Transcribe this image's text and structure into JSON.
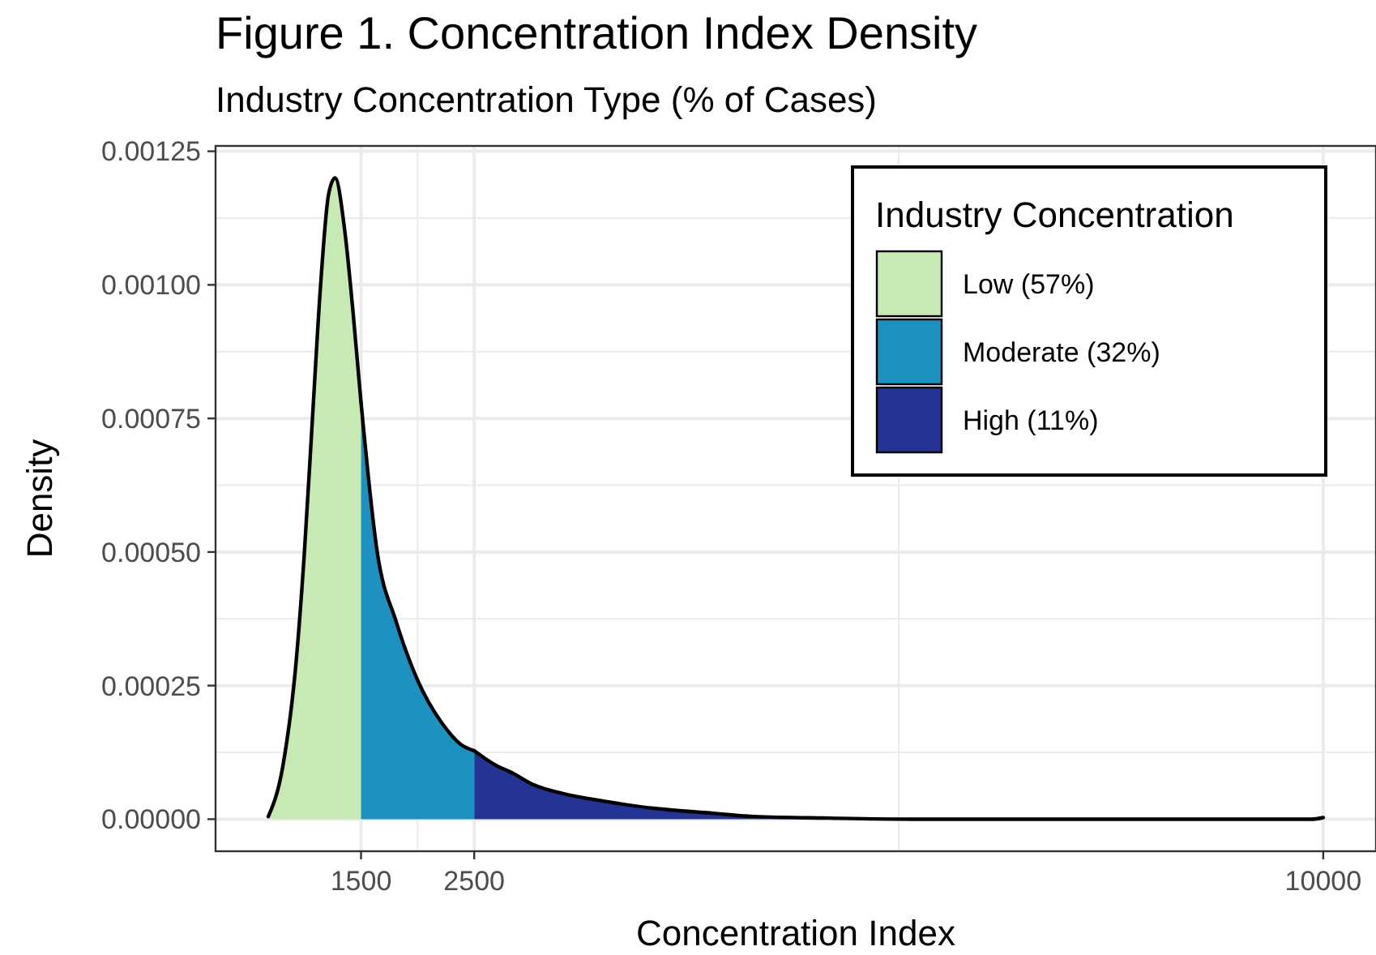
{
  "chart_data": {
    "type": "area",
    "title": "Figure 1. Concentration Index Density",
    "subtitle": "Industry Concentration Type (% of Cases)",
    "xlabel": "Concentration Index",
    "ylabel": "Density",
    "legend_title": "Industry Concentration",
    "legend": "top right",
    "grid": true,
    "xlim": [
      215,
      10466
    ],
    "xticks": [
      1500,
      2500,
      10000
    ],
    "ylim": [
      -6e-05,
      0.00126
    ],
    "yticks": [
      {
        "value": 0,
        "label": "0.00000"
      },
      {
        "value": 0.00025,
        "label": "0.00025"
      },
      {
        "value": 0.0005,
        "label": "0.00050"
      },
      {
        "value": 0.00075,
        "label": "0.00075"
      },
      {
        "value": 0.001,
        "label": "0.00100"
      },
      {
        "value": 0.00125,
        "label": "0.00125"
      }
    ],
    "series": [
      {
        "name": "Low (57%)",
        "color": "#c7e9b4",
        "x": [
          681,
          810,
          929,
          1000,
          1071,
          1143,
          1214,
          1271,
          1357,
          1429,
          1500
        ],
        "values": [
          5e-06,
          0.0001,
          0.0003,
          0.0005,
          0.00075,
          0.001,
          0.00117,
          0.0012,
          0.0011,
          0.00095,
          0.00078
        ]
      },
      {
        "name": "Moderate (32%)",
        "color": "#1d91c0",
        "x": [
          1500,
          1643,
          1810,
          2000,
          2214,
          2381,
          2500
        ],
        "values": [
          0.00078,
          0.0005,
          0.00037,
          0.00026,
          0.00018,
          0.00014,
          0.000128
        ]
      },
      {
        "name": "High (11%)",
        "color": "#253494",
        "x": [
          2500,
          2697,
          2824,
          3029,
          3284,
          3641,
          4100,
          4557,
          4967,
          5629,
          6396,
          9896,
          10000
        ],
        "values": [
          0.000128,
          0.0001,
          8.8e-05,
          6.4e-05,
          4.8e-05,
          3.4e-05,
          2e-05,
          1.2e-05,
          5e-06,
          2e-06,
          0,
          0,
          3e-06
        ]
      }
    ]
  }
}
